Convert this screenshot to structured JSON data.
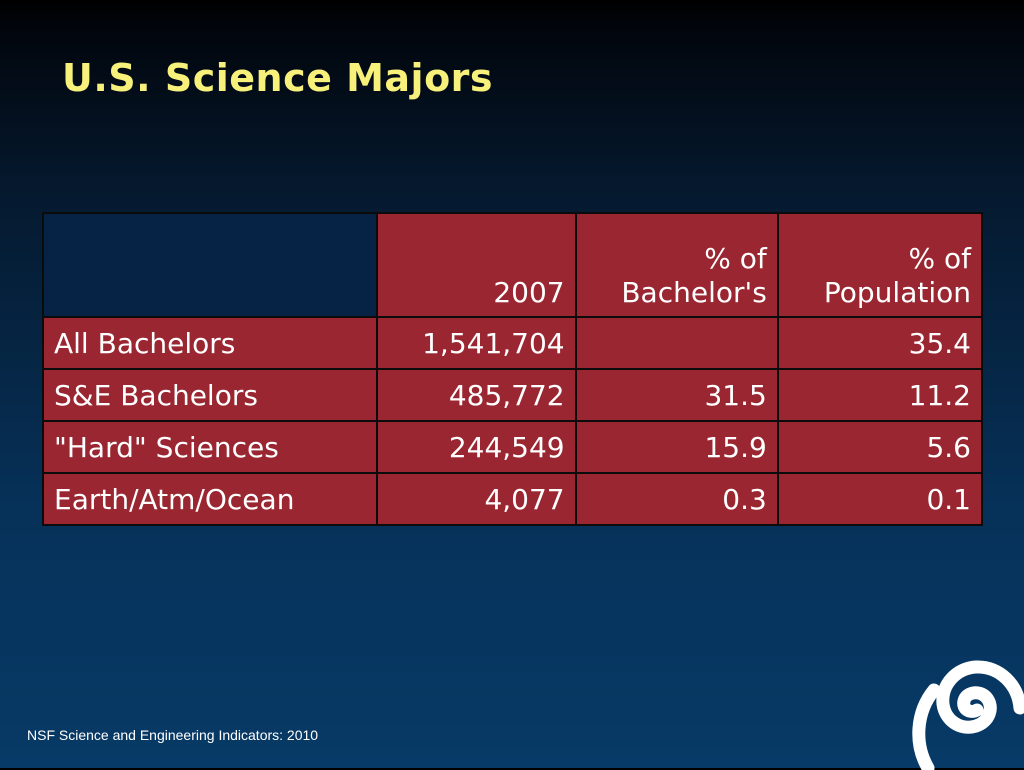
{
  "slide": {
    "title": "U.S. Science Majors",
    "footer": "NSF Science and Engineering Indicators: 2010"
  },
  "table": {
    "headers": {
      "corner": "",
      "year": "2007",
      "pct_bachelors_line1": "% of",
      "pct_bachelors_line2": "Bachelor's",
      "pct_population_line1": "% of",
      "pct_population_line2": "Population"
    },
    "rows": [
      {
        "label": "All Bachelors",
        "count": "1,541,704",
        "pct_bachelors": "",
        "pct_population": "35.4"
      },
      {
        "label": "S&E Bachelors",
        "count": "485,772",
        "pct_bachelors": "31.5",
        "pct_population": "11.2"
      },
      {
        "label": "\"Hard\" Sciences",
        "count": "244,549",
        "pct_bachelors": "15.9",
        "pct_population": "5.6"
      },
      {
        "label": "Earth/Atm/Ocean",
        "count": "4,077",
        "pct_bachelors": "0.3",
        "pct_population": "0.1"
      }
    ]
  },
  "colors": {
    "title": "#f7f07a",
    "cell_fill": "#992630",
    "corner_fill": "#062245",
    "logo": "#ffffff"
  },
  "icons": {
    "logo": "spiral-logo-icon"
  }
}
